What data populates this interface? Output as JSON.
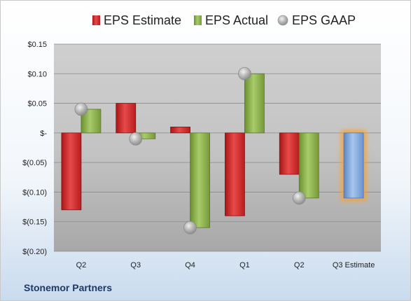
{
  "company_name": "Stonemor Partners",
  "colors": {
    "estimate": "#d42a2a",
    "actual": "#8ab04a",
    "gaap": "#b8b8b8",
    "forecast": "#7ea6dc",
    "forecast_glow": "#f5a33a"
  },
  "chart_data": {
    "type": "bar",
    "title": "",
    "xlabel": "",
    "ylabel": "",
    "ylim": [
      -0.2,
      0.15
    ],
    "grid": true,
    "legend_position": "top",
    "y_ticks": [
      {
        "value": 0.15,
        "label": "$0.15"
      },
      {
        "value": 0.1,
        "label": "$0.10"
      },
      {
        "value": 0.05,
        "label": "$0.05"
      },
      {
        "value": 0.0,
        "label": "$-"
      },
      {
        "value": -0.05,
        "label": "$(0.05)"
      },
      {
        "value": -0.1,
        "label": "$(0.10)"
      },
      {
        "value": -0.15,
        "label": "$(0.15)"
      },
      {
        "value": -0.2,
        "label": "$(0.20)"
      }
    ],
    "categories": [
      "Q2",
      "Q3",
      "Q4",
      "Q1",
      "Q2",
      "Q3 Estimate"
    ],
    "series": [
      {
        "name": "EPS Estimate",
        "kind": "bar",
        "values": [
          -0.13,
          0.05,
          0.01,
          -0.14,
          -0.07,
          -0.11
        ]
      },
      {
        "name": "EPS Actual",
        "kind": "bar",
        "values": [
          0.04,
          -0.01,
          -0.16,
          0.1,
          -0.11,
          null
        ]
      },
      {
        "name": "EPS GAAP",
        "kind": "marker",
        "values": [
          0.04,
          -0.01,
          -0.16,
          0.1,
          -0.11,
          null
        ]
      }
    ]
  }
}
